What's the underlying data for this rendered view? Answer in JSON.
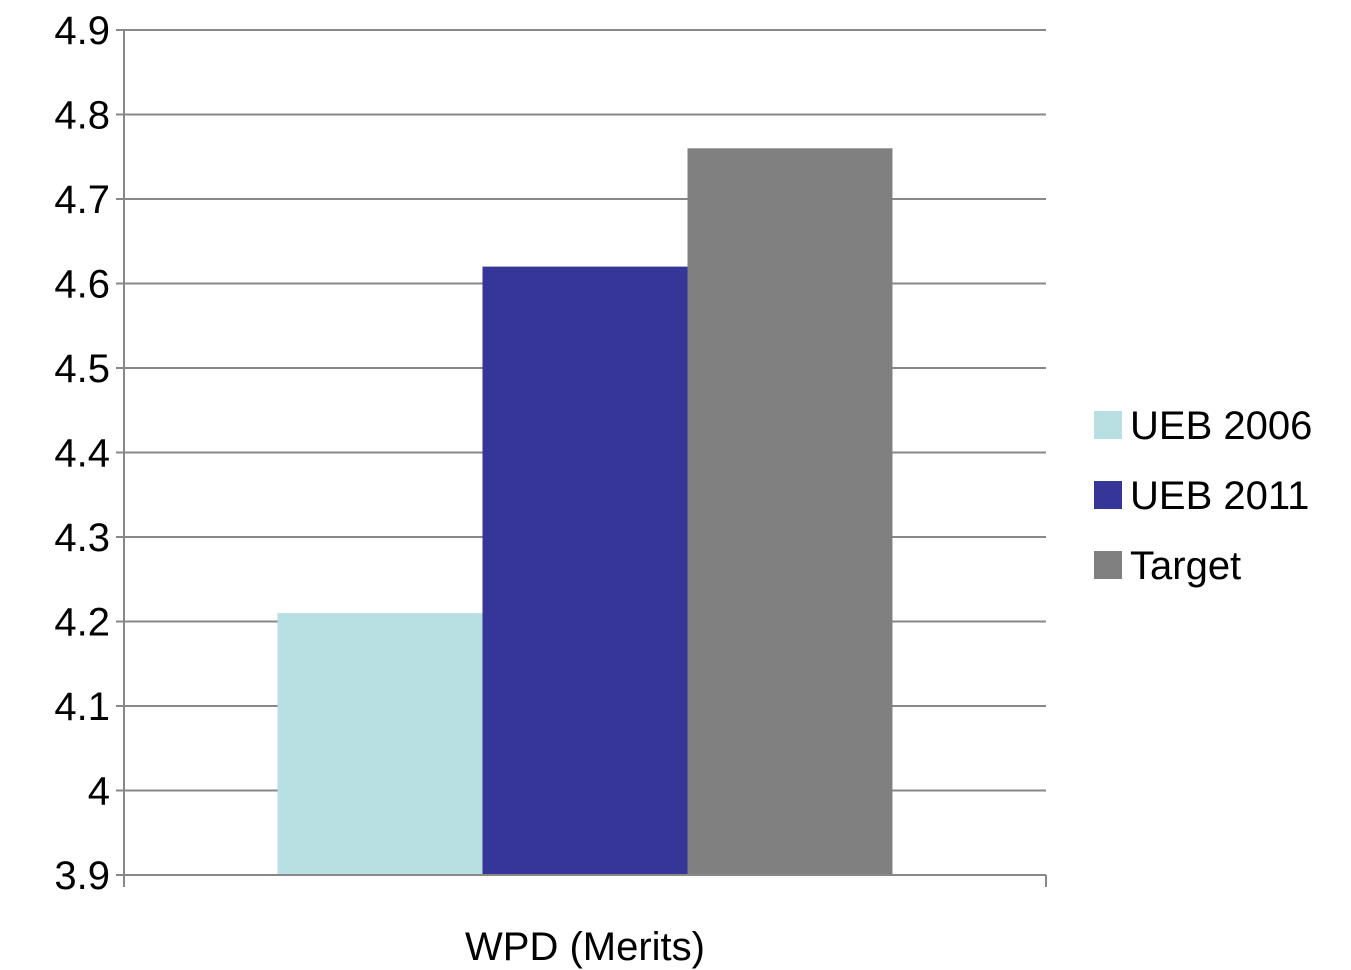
{
  "chart_data": {
    "type": "bar",
    "title": "",
    "xlabel": "",
    "ylabel": "",
    "categories": [
      "WPD (Merits)"
    ],
    "series": [
      {
        "name": "UEB 2006",
        "values": [
          4.21
        ],
        "color": "#b8e0e2"
      },
      {
        "name": "UEB 2011",
        "values": [
          4.62
        ],
        "color": "#363598"
      },
      {
        "name": "Target",
        "values": [
          4.76
        ],
        "color": "#808080"
      }
    ],
    "ylim": [
      3.9,
      4.9
    ],
    "yticks": [
      "3.9",
      "4",
      "4.1",
      "4.2",
      "4.3",
      "4.4",
      "4.5",
      "4.6",
      "4.7",
      "4.8",
      "4.9"
    ],
    "grid": true,
    "grid_color": "#888888",
    "legend_position": "right"
  }
}
